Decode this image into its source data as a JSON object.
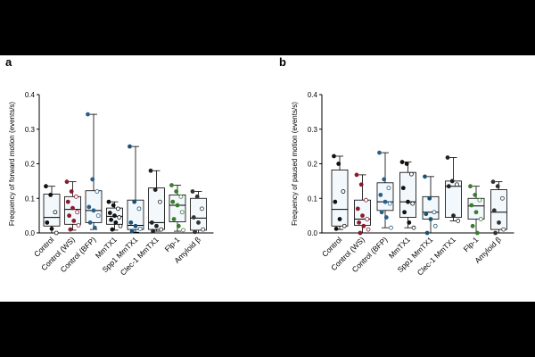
{
  "chart_data": [
    {
      "type": "box",
      "panel": "a",
      "xlabel": "",
      "ylabel": "Frequency of forward motion (events/s)",
      "ylim": [
        0,
        0.4
      ],
      "yticks": [
        "0.0",
        "0.1",
        "0.2",
        "0.3",
        "0.4"
      ],
      "categories": [
        "Control",
        "Control (WS)",
        "Control (BFP)",
        "MmTX1",
        "Spp1 MmTX1",
        "Clec-1 MmTX1",
        "Flp-1",
        "Amyloid β"
      ],
      "colors": [
        "#111111",
        "#8b1a2b",
        "#2a5f8a",
        "#111111",
        "#1a5276",
        "#222222",
        "#3a7d2c",
        "#333333"
      ],
      "boxes": [
        {
          "min": 0.0,
          "q1": 0.02,
          "median": 0.045,
          "q3": 0.112,
          "max": 0.135
        },
        {
          "min": 0.008,
          "q1": 0.025,
          "median": 0.068,
          "q3": 0.105,
          "max": 0.148
        },
        {
          "min": 0.01,
          "q1": 0.03,
          "median": 0.065,
          "q3": 0.122,
          "max": 0.343
        },
        {
          "min": 0.008,
          "q1": 0.025,
          "median": 0.048,
          "q3": 0.072,
          "max": 0.09
        },
        {
          "min": 0.002,
          "q1": 0.01,
          "median": 0.022,
          "q3": 0.095,
          "max": 0.25
        },
        {
          "min": 0.005,
          "q1": 0.01,
          "median": 0.03,
          "q3": 0.13,
          "max": 0.18
        },
        {
          "min": 0.005,
          "q1": 0.032,
          "median": 0.08,
          "q3": 0.11,
          "max": 0.138
        },
        {
          "min": 0.0,
          "q1": 0.008,
          "median": 0.043,
          "q3": 0.1,
          "max": 0.12
        }
      ],
      "points": [
        [
          0.135,
          0.11,
          0.06,
          0.03,
          0.012,
          0.0
        ],
        [
          0.148,
          0.12,
          0.105,
          0.09,
          0.072,
          0.06,
          0.05,
          0.035,
          0.022,
          0.01
        ],
        [
          0.343,
          0.155,
          0.12,
          0.075,
          0.065,
          0.05,
          0.03,
          0.015
        ],
        [
          0.09,
          0.08,
          0.07,
          0.058,
          0.05,
          0.045,
          0.038,
          0.03,
          0.02,
          0.01
        ],
        [
          0.25,
          0.09,
          0.07,
          0.03,
          0.02,
          0.012,
          0.005
        ],
        [
          0.18,
          0.125,
          0.09,
          0.03,
          0.02,
          0.01,
          0.005
        ],
        [
          0.138,
          0.12,
          0.105,
          0.09,
          0.08,
          0.06,
          0.04,
          0.02,
          0.008
        ],
        [
          0.12,
          0.105,
          0.07,
          0.045,
          0.03,
          0.01,
          0.003
        ]
      ]
    },
    {
      "type": "box",
      "panel": "b",
      "xlabel": "",
      "ylabel": "Frequency of paused motion (events/s)",
      "ylim": [
        0,
        0.4
      ],
      "yticks": [
        "0.0",
        "0.1",
        "0.2",
        "0.3",
        "0.4"
      ],
      "categories": [
        "Control",
        "Control (WS)",
        "Control (BFP)",
        "MmTX1",
        "Spp1 MmTX1",
        "Clec-1 MmTX1",
        "Flp-1",
        "Amyloid β"
      ],
      "colors": [
        "#111111",
        "#8b1a2b",
        "#2a5f8a",
        "#111111",
        "#1a5276",
        "#222222",
        "#3a7d2c",
        "#333333"
      ],
      "boxes": [
        {
          "min": 0.01,
          "q1": 0.02,
          "median": 0.068,
          "q3": 0.182,
          "max": 0.222
        },
        {
          "min": 0.0,
          "q1": 0.022,
          "median": 0.04,
          "q3": 0.095,
          "max": 0.168
        },
        {
          "min": 0.015,
          "q1": 0.065,
          "median": 0.09,
          "q3": 0.145,
          "max": 0.232
        },
        {
          "min": 0.015,
          "q1": 0.045,
          "median": 0.09,
          "q3": 0.175,
          "max": 0.205
        },
        {
          "min": 0.0,
          "q1": 0.04,
          "median": 0.06,
          "q3": 0.105,
          "max": 0.163
        },
        {
          "min": 0.035,
          "q1": 0.045,
          "median": 0.135,
          "q3": 0.15,
          "max": 0.218
        },
        {
          "min": 0.0,
          "q1": 0.04,
          "median": 0.078,
          "q3": 0.1,
          "max": 0.135
        },
        {
          "min": 0.0,
          "q1": 0.01,
          "median": 0.06,
          "q3": 0.125,
          "max": 0.148
        }
      ],
      "points": [
        [
          0.222,
          0.2,
          0.12,
          0.09,
          0.04,
          0.02,
          0.012
        ],
        [
          0.168,
          0.14,
          0.095,
          0.07,
          0.05,
          0.04,
          0.03,
          0.02,
          0.01,
          0.0
        ],
        [
          0.232,
          0.155,
          0.13,
          0.11,
          0.09,
          0.085,
          0.06,
          0.045,
          0.015
        ],
        [
          0.205,
          0.2,
          0.17,
          0.13,
          0.09,
          0.085,
          0.06,
          0.03,
          0.015
        ],
        [
          0.163,
          0.1,
          0.06,
          0.055,
          0.04,
          0.02,
          0.0
        ],
        [
          0.218,
          0.15,
          0.14,
          0.135,
          0.05,
          0.035
        ],
        [
          0.135,
          0.11,
          0.095,
          0.08,
          0.06,
          0.04,
          0.02,
          0.0
        ],
        [
          0.148,
          0.135,
          0.1,
          0.065,
          0.03,
          0.01,
          0.0
        ]
      ]
    }
  ]
}
